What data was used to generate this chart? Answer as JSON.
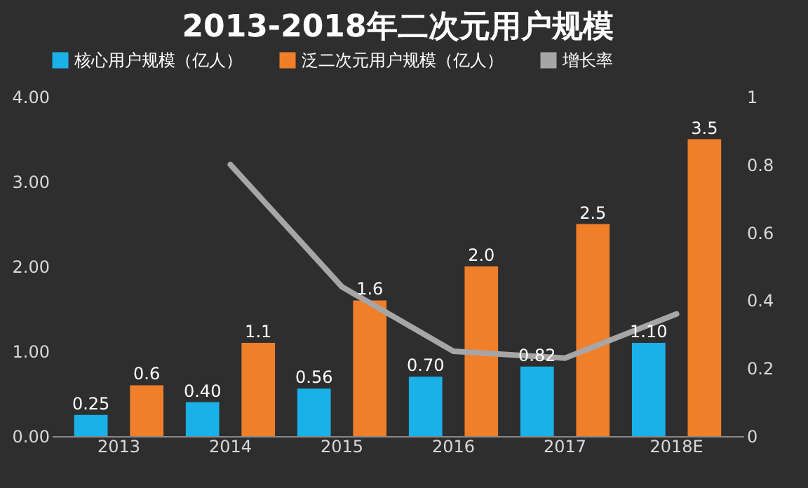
{
  "chart_data": {
    "type": "bar",
    "title": "2013-2018年二次元用户规模",
    "categories": [
      "2013",
      "2014",
      "2015",
      "2016",
      "2017",
      "2018E"
    ],
    "series": [
      {
        "name": "核心用户规模（亿人）",
        "color": "#1ab0e8",
        "values": [
          0.25,
          0.4,
          0.56,
          0.7,
          0.82,
          1.1
        ],
        "value_labels": [
          "0.25",
          "0.40",
          "0.56",
          "0.70",
          "0.82",
          "1.10"
        ]
      },
      {
        "name": "泛二次元用户规模（亿人）",
        "color": "#f07f2a",
        "values": [
          0.6,
          1.1,
          1.6,
          2.0,
          2.5,
          3.5
        ],
        "value_labels": [
          "0.6",
          "1.1",
          "1.6",
          "2.0",
          "2.5",
          "3.5"
        ]
      },
      {
        "name": "增长率",
        "type": "line",
        "axis": "y2",
        "color": "#a6a6a6",
        "values": [
          null,
          0.8,
          0.44,
          0.25,
          0.23,
          0.36
        ]
      }
    ],
    "ylim": [
      0,
      4
    ],
    "yticks": [
      {
        "value": 0,
        "label": "0.00"
      },
      {
        "value": 1,
        "label": "1.00"
      },
      {
        "value": 2,
        "label": "2.00"
      },
      {
        "value": 3,
        "label": "3.00"
      },
      {
        "value": 4,
        "label": "4.00"
      }
    ],
    "y2lim": [
      0,
      1
    ],
    "y2ticks": [
      0,
      0.2,
      0.4,
      0.6,
      0.8,
      1
    ],
    "legend": "top"
  }
}
